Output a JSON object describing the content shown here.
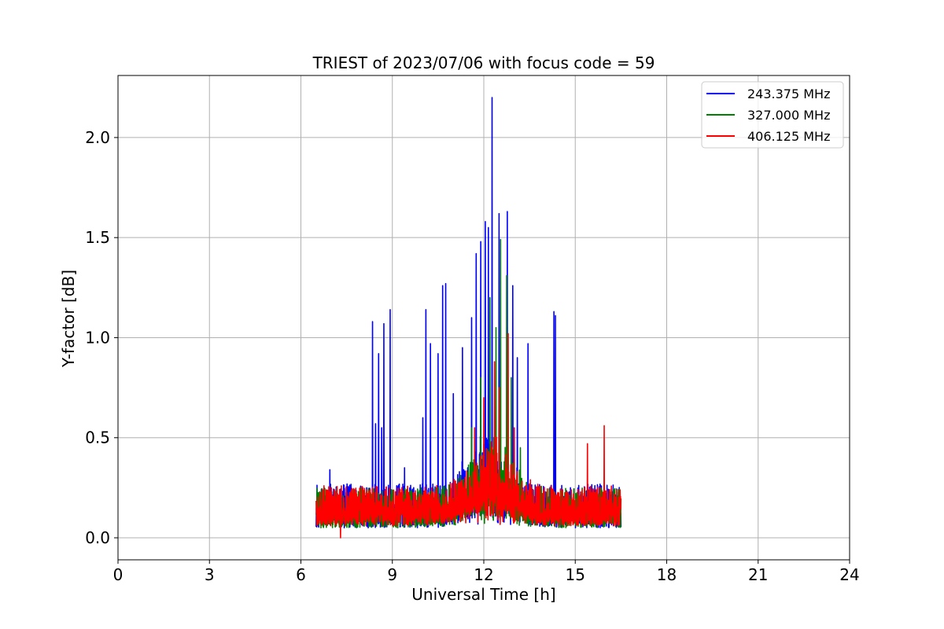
{
  "chart_data": {
    "type": "line",
    "title": "TRIEST of 2023/07/06 with focus code = 59",
    "xlabel": "Universal Time [h]",
    "ylabel": "Y-factor [dB]",
    "xlim": [
      0,
      24
    ],
    "ylim": [
      -0.11,
      2.31
    ],
    "xticks": [
      0,
      3,
      6,
      9,
      12,
      15,
      18,
      21,
      24
    ],
    "yticks": [
      0.0,
      0.5,
      1.0,
      1.5,
      2.0
    ],
    "xtick_labels": [
      "0",
      "3",
      "6",
      "9",
      "12",
      "15",
      "18",
      "21",
      "24"
    ],
    "ytick_labels": [
      "0.0",
      "0.5",
      "1.0",
      "1.5",
      "2.0"
    ],
    "grid": true,
    "legend_position": "top-right",
    "series": [
      {
        "name": "243.375 MHz",
        "color": "#0000ff",
        "x_start": 6.5,
        "x_end": 16.5,
        "baseline_band": [
          0.05,
          0.27
        ],
        "peaks": [
          {
            "x": 6.95,
            "y": 0.34
          },
          {
            "x": 8.35,
            "y": 1.08
          },
          {
            "x": 8.45,
            "y": 0.57
          },
          {
            "x": 8.55,
            "y": 0.92
          },
          {
            "x": 8.65,
            "y": 0.55
          },
          {
            "x": 8.72,
            "y": 1.07
          },
          {
            "x": 8.93,
            "y": 1.14
          },
          {
            "x": 9.4,
            "y": 0.35
          },
          {
            "x": 10.0,
            "y": 0.6
          },
          {
            "x": 10.1,
            "y": 1.14
          },
          {
            "x": 10.25,
            "y": 0.97
          },
          {
            "x": 10.5,
            "y": 0.92
          },
          {
            "x": 10.65,
            "y": 1.26
          },
          {
            "x": 10.75,
            "y": 1.27
          },
          {
            "x": 11.0,
            "y": 0.72
          },
          {
            "x": 11.3,
            "y": 0.95
          },
          {
            "x": 11.6,
            "y": 1.1
          },
          {
            "x": 11.75,
            "y": 1.42
          },
          {
            "x": 11.9,
            "y": 1.48
          },
          {
            "x": 12.05,
            "y": 1.58
          },
          {
            "x": 12.15,
            "y": 1.55
          },
          {
            "x": 12.27,
            "y": 2.2
          },
          {
            "x": 12.5,
            "y": 1.62
          },
          {
            "x": 12.77,
            "y": 1.63
          },
          {
            "x": 12.95,
            "y": 1.26
          },
          {
            "x": 13.1,
            "y": 0.9
          },
          {
            "x": 13.45,
            "y": 0.97
          },
          {
            "x": 14.3,
            "y": 1.13
          },
          {
            "x": 14.35,
            "y": 1.11
          }
        ]
      },
      {
        "name": "327.000 MHz",
        "color": "#008000",
        "x_start": 6.5,
        "x_end": 16.5,
        "baseline_band": [
          0.05,
          0.25
        ],
        "peaks": [
          {
            "x": 11.6,
            "y": 0.55
          },
          {
            "x": 11.9,
            "y": 0.8
          },
          {
            "x": 12.2,
            "y": 1.2
          },
          {
            "x": 12.4,
            "y": 1.05
          },
          {
            "x": 12.55,
            "y": 1.49
          },
          {
            "x": 12.75,
            "y": 1.31
          },
          {
            "x": 12.9,
            "y": 0.8
          },
          {
            "x": 13.2,
            "y": 0.45
          }
        ]
      },
      {
        "name": "406.125 MHz",
        "color": "#ff0000",
        "x_start": 6.5,
        "x_end": 16.5,
        "baseline_band": [
          0.06,
          0.26
        ],
        "peaks": [
          {
            "x": 7.3,
            "y": 0.0
          },
          {
            "x": 11.7,
            "y": 0.55
          },
          {
            "x": 12.0,
            "y": 0.7
          },
          {
            "x": 12.35,
            "y": 0.88
          },
          {
            "x": 12.5,
            "y": 0.75
          },
          {
            "x": 12.8,
            "y": 1.02
          },
          {
            "x": 13.0,
            "y": 0.55
          },
          {
            "x": 15.4,
            "y": 0.47
          },
          {
            "x": 15.95,
            "y": 0.56
          }
        ]
      }
    ]
  }
}
